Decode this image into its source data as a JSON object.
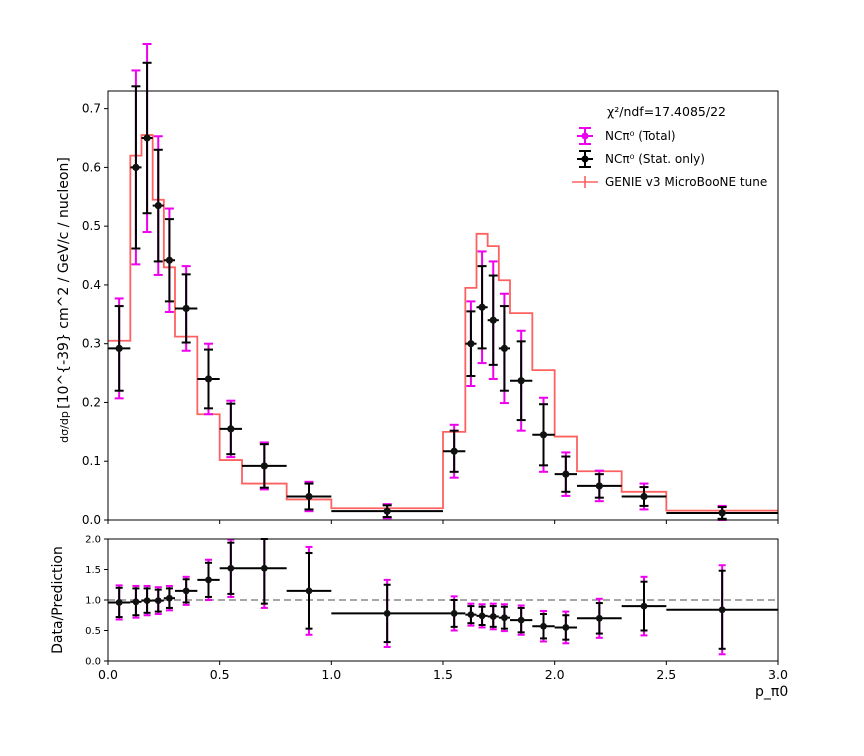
{
  "chart_data": [
    {
      "type": "scatter",
      "panel": "main",
      "ylabel_main": "[10^{-39} cm^2 / GeV/c / nucleon]",
      "ylabel_prefix": "dσ/dp_π0",
      "ylim": [
        0,
        0.73
      ],
      "xlim": [
        0,
        3
      ],
      "yticks": [
        "0.0",
        "0.1",
        "0.2",
        "0.3",
        "0.4",
        "0.5",
        "0.6",
        "0.7"
      ],
      "chi2_text": "χ²/ndf=17.4085/22",
      "legend": {
        "placement": "top-right",
        "entries": [
          {
            "label": "NCπ⁰ (Total)",
            "color": "#ee00ee"
          },
          {
            "label": "NCπ⁰ (Stat. only)",
            "color": "#000000"
          },
          {
            "label": "GENIE v3 MicroBooNE tune",
            "color": "#ff6060"
          }
        ]
      },
      "bin_edges": [
        0,
        0.1,
        0.15,
        0.2,
        0.25,
        0.3,
        0.4,
        0.5,
        0.6,
        0.8,
        1.0,
        1.5,
        1.6,
        1.65,
        1.7,
        1.75,
        1.8,
        1.9,
        2.0,
        2.1,
        2.3,
        2.5,
        3.0
      ],
      "prediction": [
        0.305,
        0.62,
        0.655,
        0.545,
        0.43,
        0.312,
        0.18,
        0.102,
        0.062,
        0.035,
        0.02,
        0.15,
        0.395,
        0.487,
        0.466,
        0.408,
        0.352,
        0.255,
        0.142,
        0.083,
        0.048,
        0.016
      ],
      "data": [
        0.292,
        0.6,
        0.65,
        0.535,
        0.442,
        0.36,
        0.24,
        0.155,
        0.092,
        0.04,
        0.015,
        0.117,
        0.3,
        0.362,
        0.34,
        0.292,
        0.237,
        0.145,
        0.078,
        0.058,
        0.04,
        0.012
      ],
      "err_total": [
        0.085,
        0.165,
        0.16,
        0.118,
        0.088,
        0.072,
        0.06,
        0.048,
        0.04,
        0.025,
        0.012,
        0.045,
        0.072,
        0.095,
        0.1,
        0.093,
        0.085,
        0.063,
        0.037,
        0.026,
        0.022,
        0.012
      ],
      "err_stat": [
        0.072,
        0.138,
        0.128,
        0.095,
        0.07,
        0.058,
        0.05,
        0.043,
        0.037,
        0.022,
        0.01,
        0.035,
        0.055,
        0.07,
        0.076,
        0.072,
        0.067,
        0.052,
        0.03,
        0.02,
        0.016,
        0.01
      ],
      "color_total": "#ee00ee",
      "color_stat": "#000000",
      "color_prediction": "#ff6060"
    },
    {
      "type": "scatter",
      "panel": "ratio",
      "ylabel": "Data/Prediction",
      "xlabel": "p_π0",
      "ylim": [
        0,
        2
      ],
      "xlim": [
        0,
        3
      ],
      "yticks": [
        "0.0",
        "0.5",
        "1.0",
        "1.5",
        "2.0"
      ],
      "xticks": [
        "0.0",
        "0.5",
        "1.0",
        "1.5",
        "2.0",
        "2.5",
        "3.0"
      ],
      "reference_line": 1.0,
      "ratio": [
        0.96,
        0.97,
        0.99,
        0.99,
        1.03,
        1.15,
        1.33,
        1.52,
        1.52,
        1.15,
        0.78,
        0.78,
        0.76,
        0.74,
        0.73,
        0.71,
        0.67,
        0.57,
        0.55,
        0.7,
        0.9,
        0.84
      ],
      "ratio_err_total": [
        0.28,
        0.26,
        0.24,
        0.22,
        0.2,
        0.23,
        0.33,
        0.47,
        0.65,
        0.72,
        0.55,
        0.28,
        0.18,
        0.19,
        0.21,
        0.22,
        0.24,
        0.25,
        0.26,
        0.32,
        0.48,
        0.73
      ],
      "ratio_err_stat": [
        0.24,
        0.22,
        0.2,
        0.18,
        0.16,
        0.19,
        0.28,
        0.42,
        0.58,
        0.62,
        0.47,
        0.22,
        0.14,
        0.15,
        0.17,
        0.18,
        0.2,
        0.2,
        0.2,
        0.25,
        0.4,
        0.64
      ]
    }
  ]
}
